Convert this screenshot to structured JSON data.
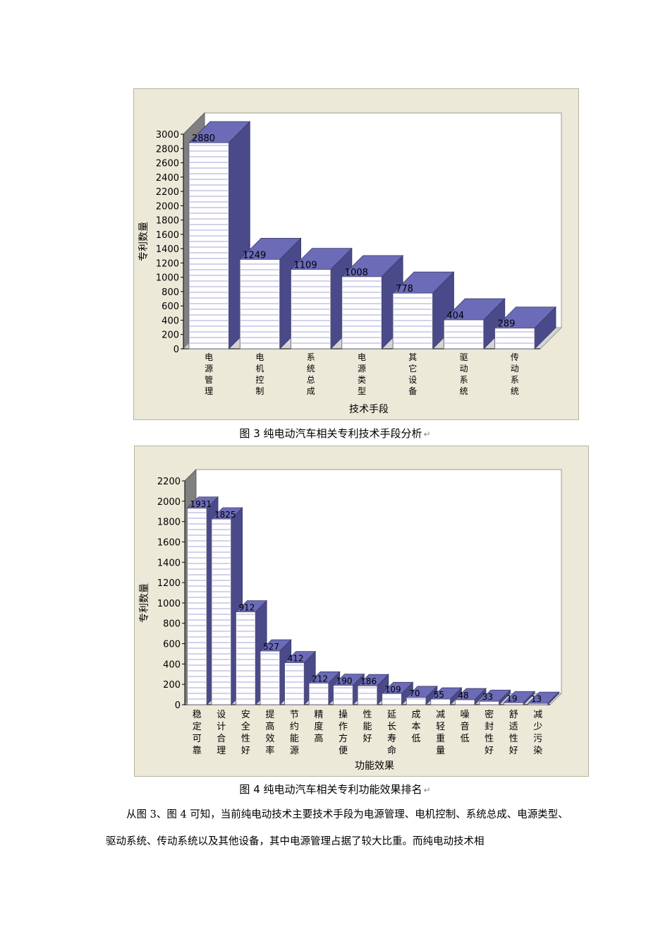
{
  "chart_data": [
    {
      "type": "bar",
      "title": "图 3  纯电动汽车相关专利技术手段分析",
      "xlabel": "技术手段",
      "ylabel": "专利数量",
      "ylim": [
        0,
        3000
      ],
      "ytick_step": 200,
      "categories": [
        "电源管理",
        "电机控制",
        "系统总成",
        "电源类型",
        "其它设备",
        "驱动系统",
        "传动系统"
      ],
      "values": [
        2880,
        1249,
        1109,
        1008,
        778,
        404,
        289
      ],
      "bar_color": "#6b6bb8",
      "stripe_color": "#8888cc"
    },
    {
      "type": "bar",
      "title": "图 4  纯电动汽车相关专利功能效果排名",
      "xlabel": "功能效果",
      "ylabel": "专利数量",
      "ylim": [
        0,
        2200
      ],
      "ytick_step": 200,
      "categories": [
        "稳定可靠",
        "设计合理",
        "安全性好",
        "提高效率",
        "节约能源",
        "精度高",
        "操作方便",
        "性能好",
        "延长寿命",
        "成本低",
        "减轻重量",
        "噪音低",
        "密封性好",
        "舒适性好",
        "减少污染"
      ],
      "values": [
        1931,
        1825,
        912,
        527,
        412,
        212,
        190,
        186,
        109,
        70,
        55,
        48,
        33,
        19,
        13
      ],
      "bar_color": "#6b6bb8",
      "stripe_color": "#8888cc"
    }
  ],
  "captions": {
    "fig3": "图 3  纯电动汽车相关专利技术手段分析",
    "fig4": "图 4  纯电动汽车相关专利功能效果排名"
  },
  "paragraph": {
    "text": "从图 3、图 4 可知，当前纯电动技术主要技术手段为电源管理、电机控制、系统总成、电源类型、驱动系统、传动系统以及其他设备，其中电源管理占据了较大比重。而纯电动技术相"
  },
  "return_mark": "↵"
}
